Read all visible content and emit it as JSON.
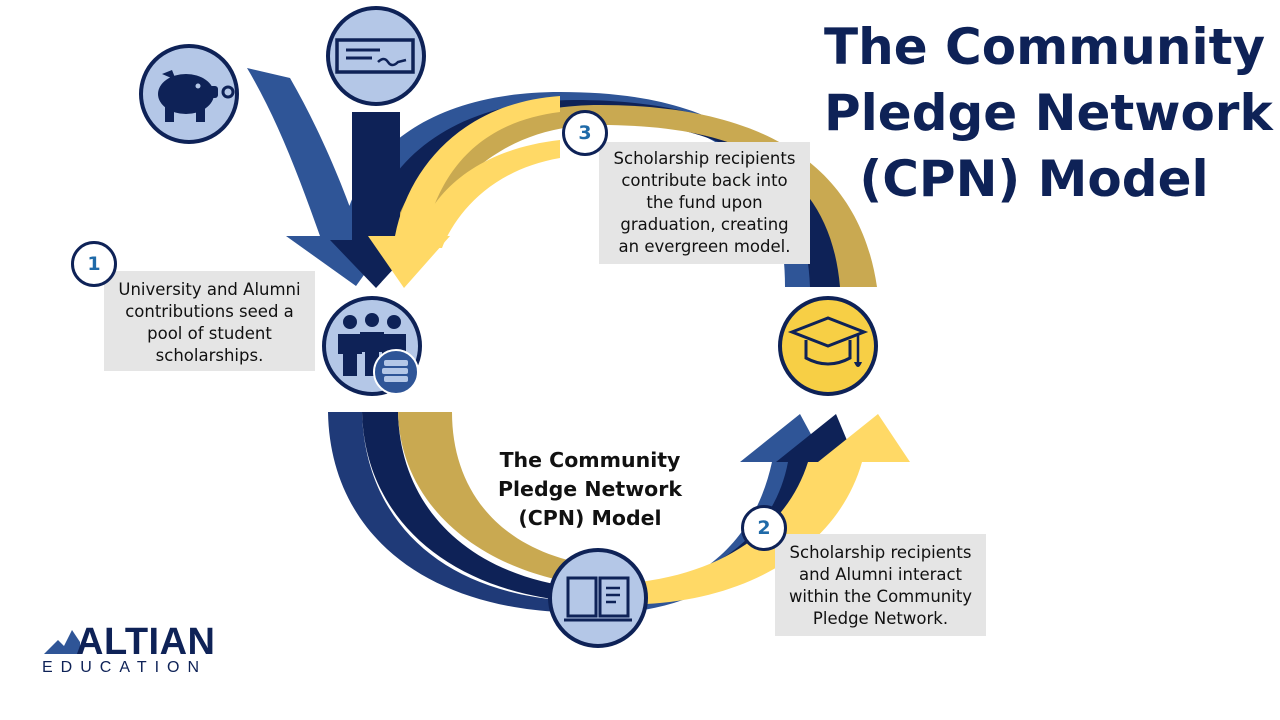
{
  "title": {
    "lines": [
      "The Community",
      "Pledge Network",
      "(CPN) Model"
    ]
  },
  "center_label": {
    "lines": [
      "The Community",
      "Pledge Network",
      "(CPN) Model"
    ]
  },
  "steps": [
    {
      "number": "1",
      "lines": [
        "University and Alumni",
        "contributions seed a",
        "pool of student",
        "scholarships."
      ]
    },
    {
      "number": "2",
      "lines": [
        "Scholarship recipients",
        "and Alumni interact",
        "within the Community",
        "Pledge Network."
      ]
    },
    {
      "number": "3",
      "lines": [
        "Scholarship recipients",
        "contribute back into",
        "the fund upon",
        "graduation, creating",
        "an evergreen model."
      ]
    }
  ],
  "icons": {
    "piggy_bank": "piggy-bank-icon",
    "check": "check-payment-icon",
    "students": "students-books-icon",
    "book": "open-book-icon",
    "graduation": "graduation-cap-icon"
  },
  "logo": {
    "word": "ALTIAN",
    "sub": "EDUCATION"
  },
  "colors": {
    "navy": "#0e2257",
    "mid_blue": "#2f5597",
    "dark_blue": "#1f3a78",
    "gold": "#c9a951",
    "light_gold": "#ffd966",
    "icon_fill": "#b4c7e7",
    "icon_gold": "#f7cf45",
    "text_box": "#e5e5e5"
  }
}
